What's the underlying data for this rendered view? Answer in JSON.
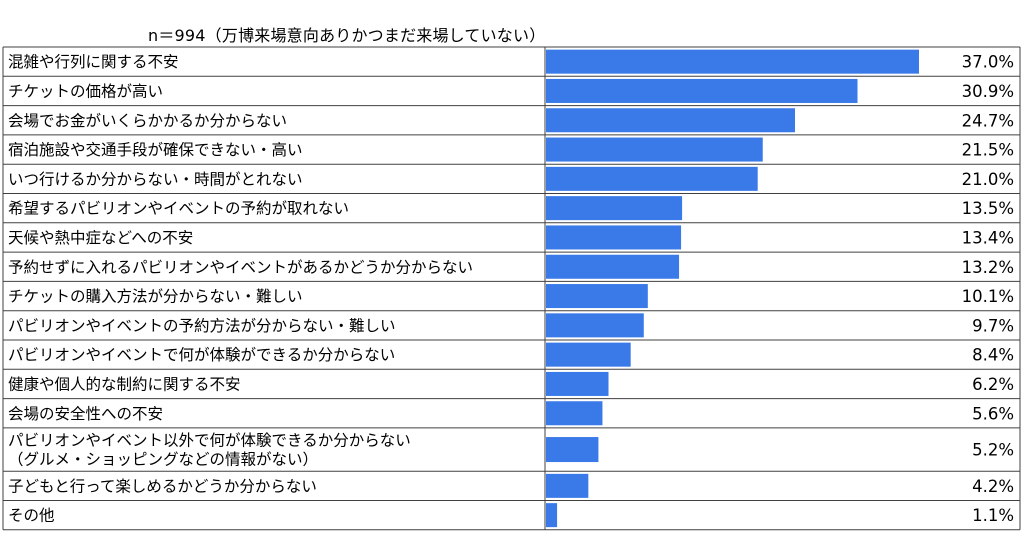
{
  "chart_data": {
    "type": "bar",
    "orientation": "horizontal",
    "subtitle": "n＝994（万博来場意向ありかつまだ来場していない）",
    "categories": [
      [
        "混雑や行列に関する不安"
      ],
      [
        "チケットの価格が高い"
      ],
      [
        "会場でお金がいくらかかるか分からない"
      ],
      [
        "宿泊施設や交通手段が確保できない・高い"
      ],
      [
        "いつ行けるか分からない・時間がとれない"
      ],
      [
        "希望するパビリオンやイベントの予約が取れない"
      ],
      [
        "天候や熱中症などへの不安"
      ],
      [
        "予約せずに入れるパビリオンやイベントがあるかどうか分からない"
      ],
      [
        "チケットの購入方法が分からない・難しい"
      ],
      [
        "パビリオンやイベントの予約方法が分からない・難しい"
      ],
      [
        "パビリオンやイベントで何が体験ができるか分からない"
      ],
      [
        "健康や個人的な制約に関する不安"
      ],
      [
        "会場の安全性への不安"
      ],
      [
        "パビリオンやイベント以外で何が体験できるか分からない",
        "（グルメ・ショッピングなどの情報がない）"
      ],
      [
        "子どもと行って楽しめるかどうか分からない"
      ],
      [
        "その他"
      ]
    ],
    "values": [
      37.0,
      30.9,
      24.7,
      21.5,
      21.0,
      13.5,
      13.4,
      13.2,
      10.1,
      9.7,
      8.4,
      6.2,
      5.6,
      5.2,
      4.2,
      1.1
    ],
    "value_labels": [
      "37.0%",
      "30.9%",
      "24.7%",
      "21.5%",
      "21.0%",
      "13.5%",
      "13.4%",
      "13.2%",
      "10.1%",
      "9.7%",
      "8.4%",
      "6.2%",
      "5.6%",
      "5.2%",
      "4.2%",
      "1.1%"
    ],
    "bar_color": "#3a7ae8",
    "grid_color": "#404040"
  }
}
